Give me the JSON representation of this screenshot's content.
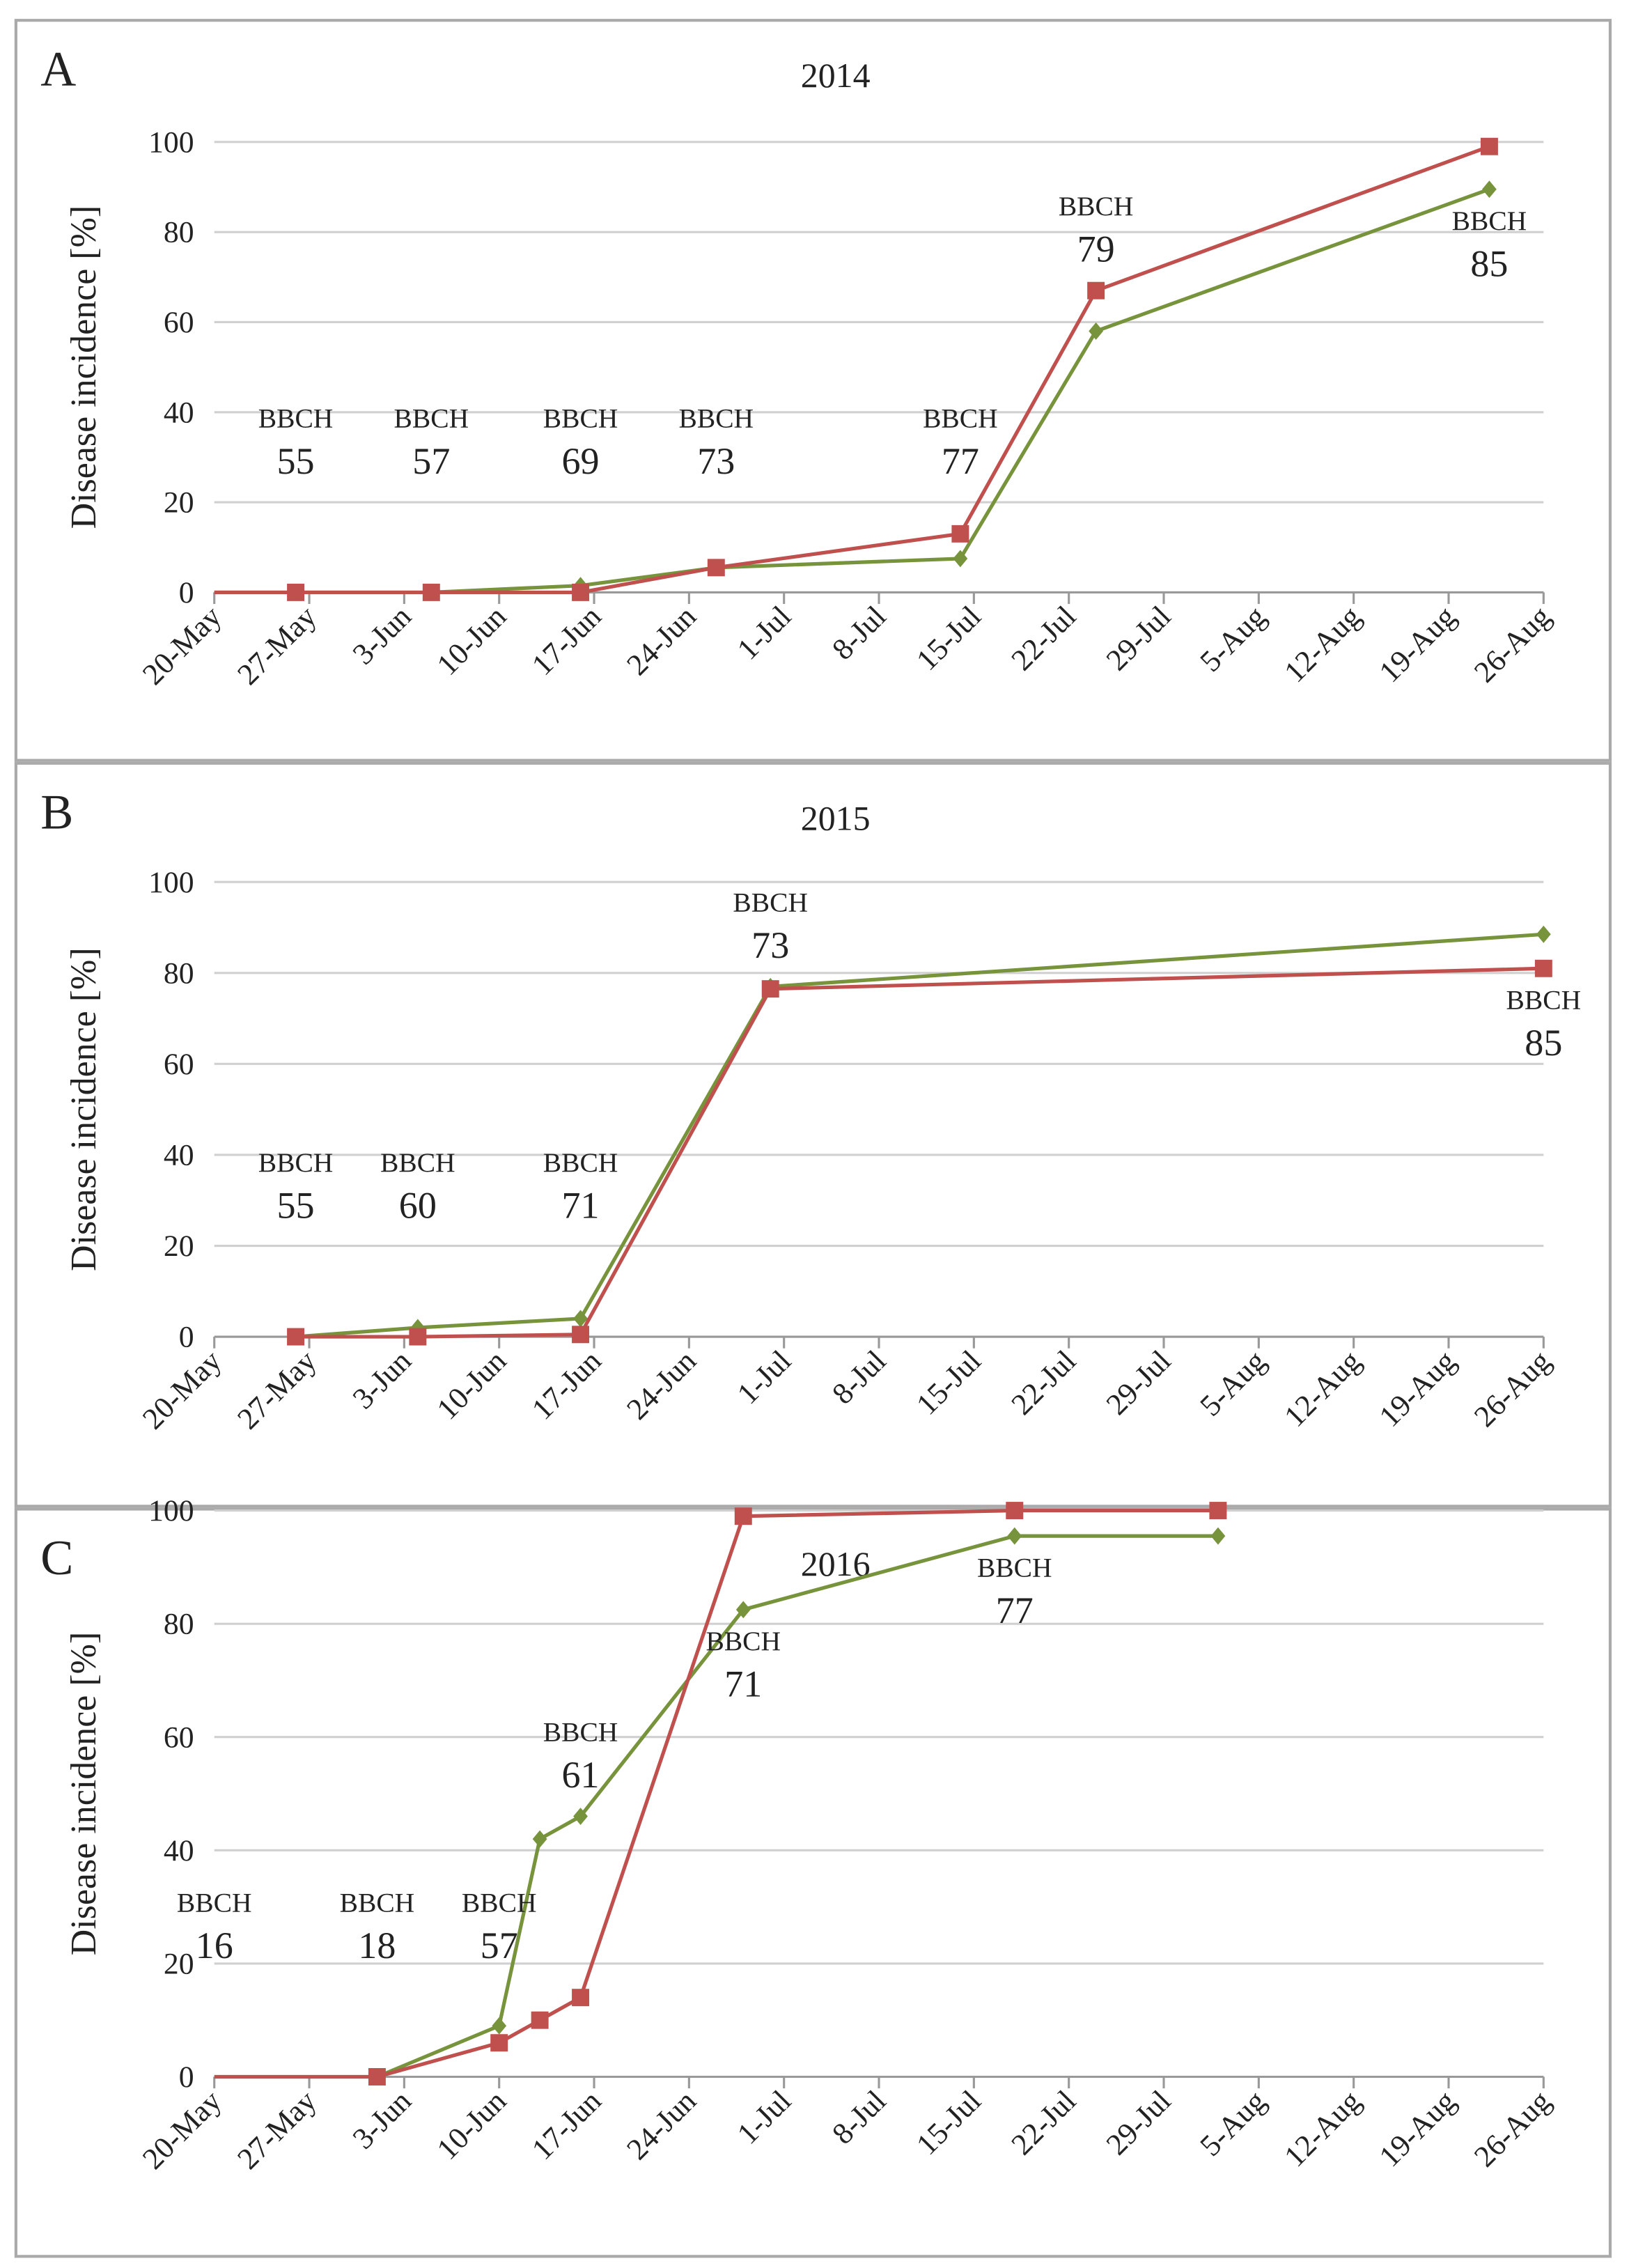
{
  "chart_data": [
    {
      "type": "line",
      "label": "A",
      "title": "2014",
      "y_label": "Disease incidence [%]",
      "x": [
        "20-May",
        "26-May",
        "5-Jun",
        "16-Jun",
        "26-Jun",
        "14-Jul",
        "24-Jul",
        "22-Aug"
      ],
      "series": [
        {
          "color": "#77933c",
          "marker": "diamond",
          "values": [
            0,
            0,
            0,
            1.5,
            5.5,
            7.5,
            58,
            89.5
          ]
        },
        {
          "color": "#c0504d",
          "marker": "square",
          "values": [
            0,
            0,
            0,
            0,
            5.5,
            13,
            67,
            99
          ]
        }
      ],
      "xlim": [
        "20-May",
        "26-Aug"
      ],
      "xticks": [
        "20-May",
        "27-May",
        "3-Jun",
        "10-Jun",
        "17-Jun",
        "24-Jun",
        "1-Jul",
        "8-Jul",
        "15-Jul",
        "22-Jul",
        "29-Jul",
        "5-Aug",
        "12-Aug",
        "19-Aug",
        "26-Aug"
      ],
      "ylim": [
        0,
        100
      ],
      "yticks": [
        0,
        20,
        40,
        60,
        80,
        100
      ],
      "grid": true,
      "annotations": [
        {
          "label": "BBCH",
          "stage": 55,
          "x": "26-May"
        },
        {
          "label": "BBCH",
          "stage": 57,
          "x": "5-Jun"
        },
        {
          "label": "BBCH",
          "stage": 69,
          "x": "16-Jun"
        },
        {
          "label": "BBCH",
          "stage": 73,
          "x": "26-Jun"
        },
        {
          "label": "BBCH",
          "stage": 77,
          "x": "14-Jul"
        },
        {
          "label": "BBCH",
          "stage": 79,
          "x": "24-Jul"
        },
        {
          "label": "BBCH",
          "stage": 85,
          "x": "22-Aug"
        }
      ]
    },
    {
      "type": "line",
      "label": "B",
      "title": "2015",
      "y_label": "Disease incidence [%]",
      "x": [
        "26-May",
        "4-Jun",
        "16-Jun",
        "30-Jun",
        "26-Aug"
      ],
      "series": [
        {
          "color": "#77933c",
          "marker": "diamond",
          "values": [
            0,
            2,
            4,
            77,
            88.5
          ]
        },
        {
          "color": "#c0504d",
          "marker": "square",
          "values": [
            0,
            0,
            0.5,
            76.5,
            81
          ]
        }
      ],
      "xlim": [
        "20-May",
        "26-Aug"
      ],
      "xticks": [
        "20-May",
        "27-May",
        "3-Jun",
        "10-Jun",
        "17-Jun",
        "24-Jun",
        "1-Jul",
        "8-Jul",
        "15-Jul",
        "22-Jul",
        "29-Jul",
        "5-Aug",
        "12-Aug",
        "19-Aug",
        "26-Aug"
      ],
      "ylim": [
        0,
        100
      ],
      "yticks": [
        0,
        20,
        40,
        60,
        80,
        100
      ],
      "grid": true,
      "annotations": [
        {
          "label": "BBCH",
          "stage": 55,
          "x": "26-May"
        },
        {
          "label": "BBCH",
          "stage": 60,
          "x": "4-Jun"
        },
        {
          "label": "BBCH",
          "stage": 71,
          "x": "16-Jun"
        },
        {
          "label": "BBCH",
          "stage": 73,
          "x": "30-Jun"
        },
        {
          "label": "BBCH",
          "stage": 85,
          "x": "26-Aug"
        }
      ]
    },
    {
      "type": "line",
      "label": "C",
      "title": "2016",
      "y_label": "Disease incidence [%]",
      "x": [
        "20-May",
        "1-Jun",
        "10-Jun",
        "13-Jun",
        "16-Jun",
        "28-Jun",
        "18-Jul",
        "2-Aug"
      ],
      "series": [
        {
          "color": "#77933c",
          "marker": "diamond",
          "values": [
            null,
            0,
            9,
            42,
            46,
            82.5,
            95.5,
            95.5
          ]
        },
        {
          "color": "#c0504d",
          "marker": "square",
          "values": [
            0,
            0,
            6,
            10,
            14,
            99,
            100,
            100
          ]
        }
      ],
      "xlim": [
        "20-May",
        "26-Aug"
      ],
      "xticks": [
        "20-May",
        "27-May",
        "3-Jun",
        "10-Jun",
        "17-Jun",
        "24-Jun",
        "1-Jul",
        "8-Jul",
        "15-Jul",
        "22-Jul",
        "29-Jul",
        "5-Aug",
        "12-Aug",
        "19-Aug",
        "26-Aug"
      ],
      "ylim": [
        0,
        100
      ],
      "yticks": [
        0,
        20,
        40,
        60,
        80,
        100
      ],
      "grid": true,
      "annotations": [
        {
          "label": "BBCH",
          "stage": 16,
          "x": "20-May"
        },
        {
          "label": "BBCH",
          "stage": 18,
          "x": "1-Jun"
        },
        {
          "label": "BBCH",
          "stage": 57,
          "x": "10-Jun"
        },
        {
          "label": "BBCH",
          "stage": 61,
          "x": "16-Jun"
        },
        {
          "label": "BBCH",
          "stage": 71,
          "x": "28-Jun"
        },
        {
          "label": "BBCH",
          "stage": 77,
          "x": "18-Jul"
        }
      ]
    }
  ]
}
